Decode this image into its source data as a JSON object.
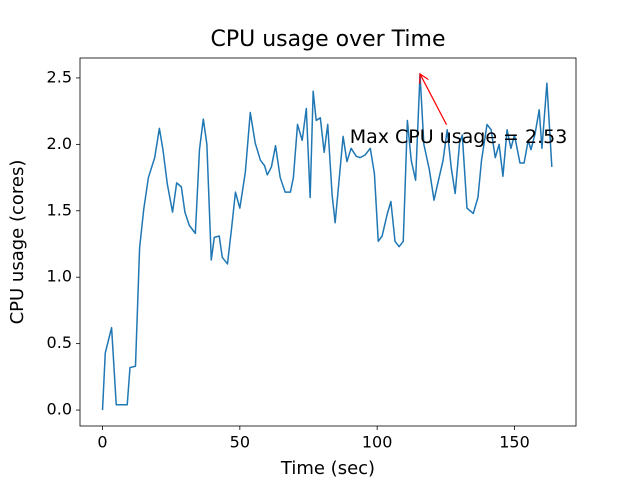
{
  "chart_data": {
    "type": "line",
    "title": "CPU usage over Time",
    "xlabel": "Time (sec)",
    "ylabel": "CPU usage (cores)",
    "x": [
      0,
      1,
      3.3,
      5,
      7,
      9,
      10,
      12,
      13.5,
      15,
      16.7,
      19,
      20.7,
      22,
      23.6,
      25.5,
      27,
      28.7,
      30,
      31.6,
      33.8,
      35.3,
      36.7,
      38,
      39.6,
      40.7,
      42.5,
      43.6,
      45.5,
      47,
      48.4,
      50,
      52,
      53.8,
      55.6,
      57.5,
      59,
      60,
      61.5,
      63,
      64.7,
      66.5,
      68.4,
      69.5,
      71,
      72.7,
      74.2,
      75.6,
      76.7,
      77.8,
      79.3,
      80.7,
      82,
      83.6,
      84.7,
      86,
      87.6,
      89,
      90.5,
      92.4,
      93.8,
      95.6,
      97.5,
      99,
      100.4,
      101.8,
      103.6,
      105,
      106.5,
      108,
      109.5,
      111,
      112.4,
      114,
      115.6,
      117,
      119,
      120.7,
      122,
      124,
      125.5,
      127,
      128.4,
      130,
      131,
      132.7,
      135,
      136.7,
      138,
      140,
      141.5,
      143,
      144.4,
      145.8,
      147.3,
      148.7,
      150,
      152,
      153.5,
      155,
      156,
      157.5,
      159,
      160,
      161.8,
      163.6
    ],
    "series": [
      {
        "name": "CPU usage",
        "color": "#1f77b4",
        "values": [
          0,
          0.43,
          0.62,
          0.04,
          0.04,
          0.04,
          0.32,
          0.33,
          1.22,
          1.51,
          1.75,
          1.9,
          2.12,
          1.96,
          1.7,
          1.49,
          1.71,
          1.68,
          1.49,
          1.39,
          1.33,
          1.96,
          2.19,
          2.0,
          1.13,
          1.3,
          1.31,
          1.15,
          1.1,
          1.37,
          1.64,
          1.52,
          1.79,
          2.24,
          2.01,
          1.88,
          1.84,
          1.77,
          1.83,
          1.99,
          1.75,
          1.64,
          1.64,
          1.75,
          2.15,
          2.03,
          2.27,
          1.6,
          2.4,
          2.18,
          2.2,
          1.94,
          2.15,
          1.62,
          1.41,
          1.7,
          2.06,
          1.87,
          1.97,
          1.91,
          1.9,
          1.92,
          1.97,
          1.78,
          1.27,
          1.31,
          1.47,
          1.57,
          1.27,
          1.23,
          1.27,
          2.18,
          1.88,
          1.73,
          2.53,
          2.0,
          1.81,
          1.58,
          1.7,
          1.88,
          2.11,
          1.82,
          1.63,
          2.01,
          2.07,
          1.52,
          1.48,
          1.6,
          1.88,
          2.15,
          2.11,
          1.9,
          2.0,
          1.76,
          2.11,
          1.97,
          2.07,
          1.86,
          1.86,
          2.03,
          1.96,
          2.08,
          2.26,
          1.97,
          2.46,
          1.83
        ]
      }
    ],
    "xlim": [
      -8.2,
      172.4
    ],
    "ylim": [
      -0.12,
      2.65
    ],
    "xticks": [
      0,
      50,
      100,
      150
    ],
    "yticks": [
      {
        "value": 0,
        "label": "0.0"
      },
      0.5,
      {
        "value": 1,
        "label": "1.0"
      },
      1.5,
      {
        "value": 2,
        "label": "2.0"
      },
      2.5
    ],
    "annotation": {
      "text": "Max CPU usage = 2.53",
      "color": "#ff0000",
      "xy": [
        115.6,
        2.53
      ],
      "xytext": [
        90,
        2.05
      ]
    }
  }
}
